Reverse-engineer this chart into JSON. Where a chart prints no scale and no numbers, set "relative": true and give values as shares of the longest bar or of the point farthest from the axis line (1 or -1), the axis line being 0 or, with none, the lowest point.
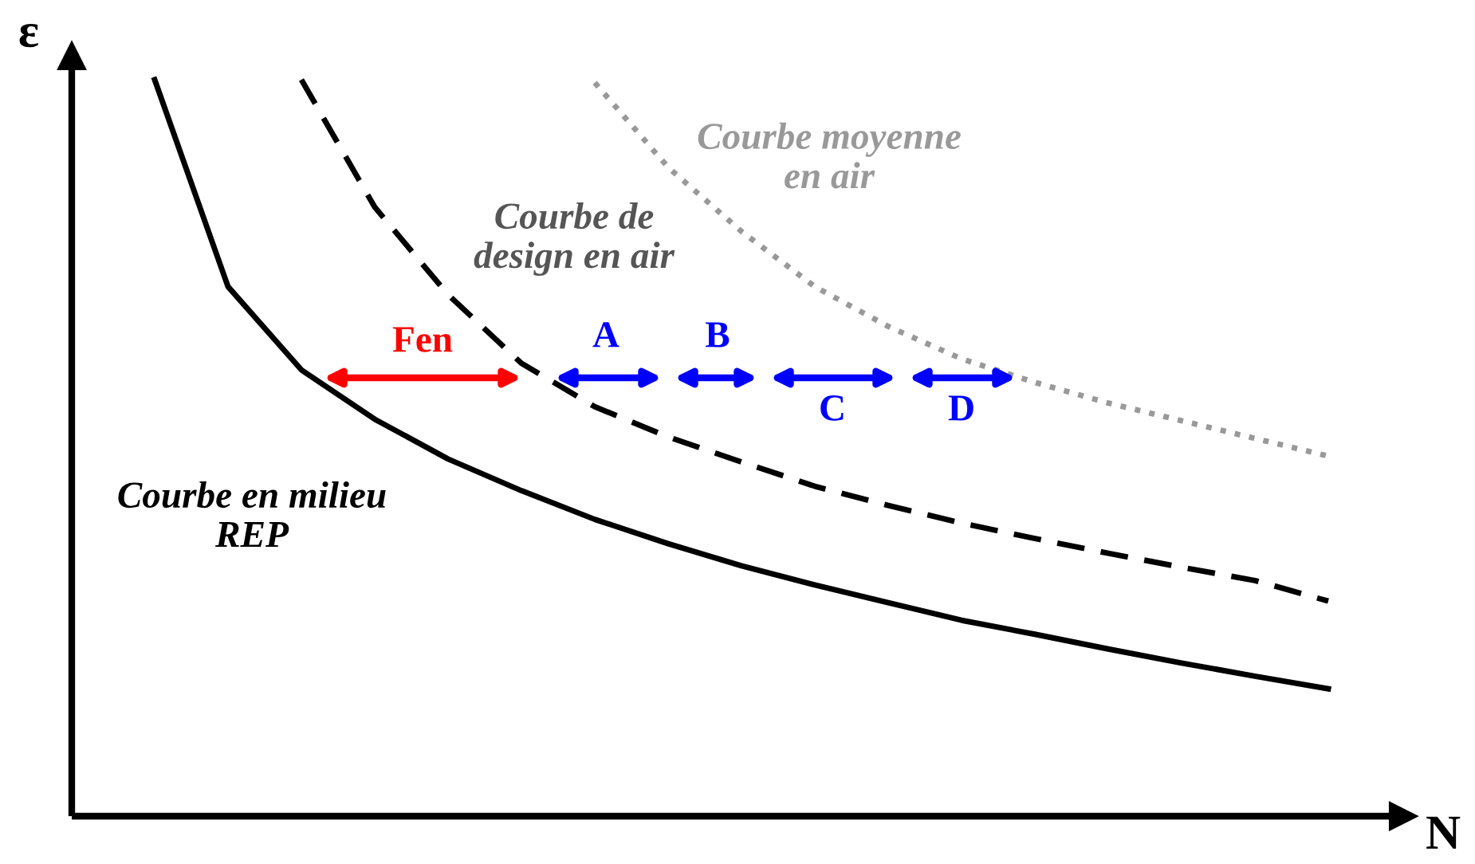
{
  "chart_data": {
    "type": "line",
    "relative": true,
    "xlabel": "N",
    "ylabel": "ε",
    "categories": [
      null,
      null,
      null,
      null,
      null,
      null,
      null,
      null,
      null,
      null,
      null,
      null,
      null,
      null,
      null,
      null,
      null
    ],
    "series": [
      {
        "name": "Courbe en milieu\nREP",
        "color": "#000000",
        "line_style": "solid",
        "values": [
          1.0,
          0.719,
          0.606,
          0.539,
          0.485,
          0.442,
          0.403,
          0.37,
          0.34,
          0.314,
          0.29,
          0.266,
          0.247,
          0.227,
          0.208,
          0.19,
          0.173
        ]
      },
      {
        "name": "Courbe de\ndesign en air",
        "color": "#000000",
        "line_style": "dashed",
        "values": [
          null,
          null,
          1.0,
          0.827,
          0.708,
          0.615,
          0.556,
          0.515,
          0.481,
          0.448,
          0.422,
          0.398,
          0.377,
          0.357,
          0.338,
          0.32,
          0.292
        ]
      },
      {
        "name": "Courbe moyenne\nen air",
        "color": "#999999",
        "line_style": "dotted",
        "values": [
          null,
          null,
          null,
          null,
          null,
          null,
          0.996,
          0.881,
          0.794,
          0.719,
          0.665,
          0.621,
          0.589,
          0.561,
          0.537,
          0.513,
          0.489
        ]
      }
    ],
    "annotations": [
      "Fen",
      "A",
      "B",
      "C",
      "D"
    ]
  }
}
